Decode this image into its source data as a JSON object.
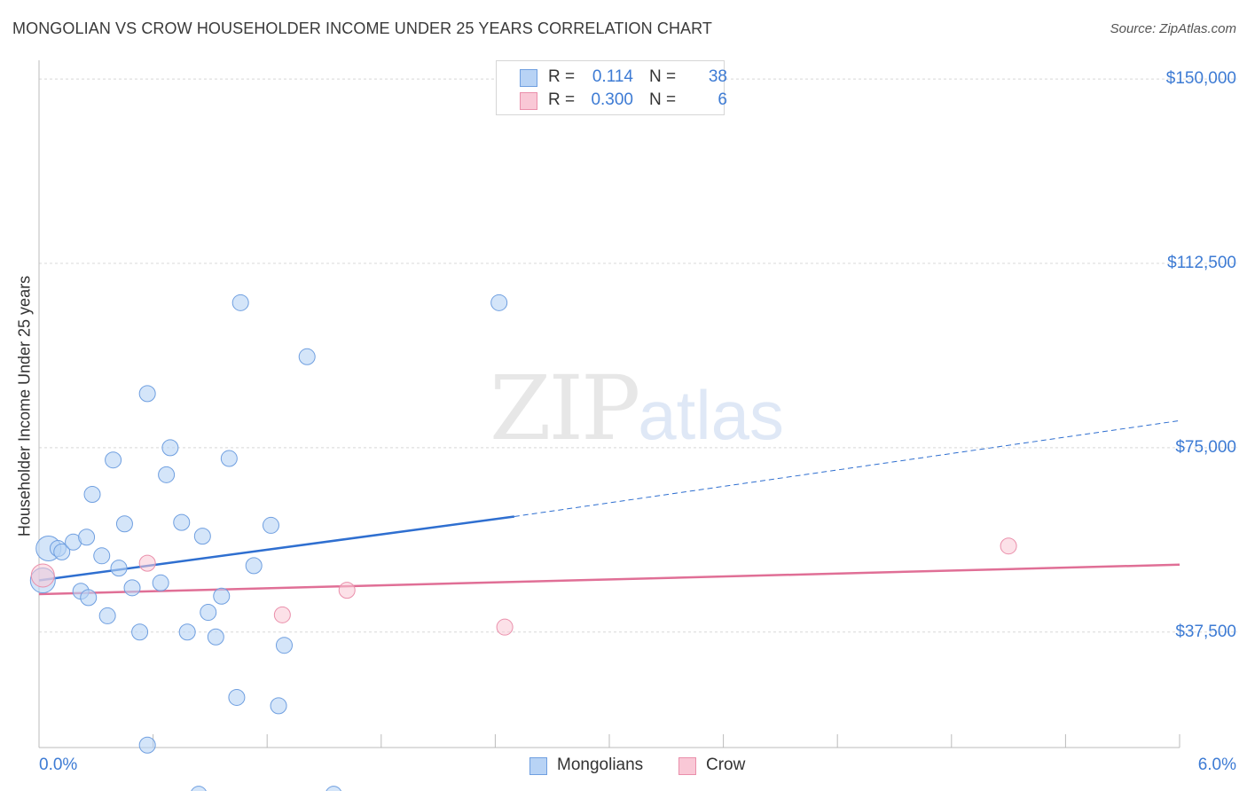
{
  "title": "MONGOLIAN VS CROW HOUSEHOLDER INCOME UNDER 25 YEARS CORRELATION CHART",
  "source_label": "Source:",
  "source_value": "ZipAtlas.com",
  "watermark": {
    "part1": "ZIP",
    "part2": "atlas"
  },
  "colors": {
    "mongolians_fill": "#b8d3f5",
    "mongolians_stroke": "#6f9fe0",
    "mongolians_line": "#2f6fd0",
    "crow_fill": "#f9c8d6",
    "crow_stroke": "#ea8fab",
    "crow_line": "#e06f96",
    "axis_text": "#3d7bd4",
    "grid": "#d8d8d8"
  },
  "legend": {
    "rows": [
      {
        "r_label": "R =",
        "r_value": "0.114",
        "n_label": "N =",
        "n_value": "38"
      },
      {
        "r_label": "R =",
        "r_value": "0.300",
        "n_label": "N =",
        "n_value": "6"
      }
    ],
    "series_names": [
      "Mongolians",
      "Crow"
    ]
  },
  "chart_data": {
    "type": "scatter",
    "title": "MONGOLIAN VS CROW HOUSEHOLDER INCOME UNDER 25 YEARS CORRELATION CHART",
    "xlabel": "",
    "ylabel": "Householder Income Under 25 years",
    "xlim": [
      0,
      6
    ],
    "ylim": [
      14000,
      152000
    ],
    "x_tick_labels": [
      "0.0%",
      "6.0%"
    ],
    "y_ticks": [
      37500,
      75000,
      112500,
      150000
    ],
    "y_tick_labels": [
      "$37,500",
      "$75,000",
      "$112,500",
      "$150,000"
    ],
    "grid": true,
    "legend_position": "top-center",
    "series": [
      {
        "name": "Mongolians",
        "points": [
          {
            "x": 0.02,
            "y": 48000,
            "big": true
          },
          {
            "x": 0.05,
            "y": 54500,
            "big": true
          },
          {
            "x": 0.1,
            "y": 54500
          },
          {
            "x": 0.12,
            "y": 53800
          },
          {
            "x": 0.18,
            "y": 55800
          },
          {
            "x": 0.25,
            "y": 56800
          },
          {
            "x": 0.22,
            "y": 45800
          },
          {
            "x": 0.26,
            "y": 44500
          },
          {
            "x": 0.28,
            "y": 65500
          },
          {
            "x": 0.33,
            "y": 53000
          },
          {
            "x": 0.36,
            "y": 40800
          },
          {
            "x": 0.39,
            "y": 72500
          },
          {
            "x": 0.42,
            "y": 50500
          },
          {
            "x": 0.45,
            "y": 59500
          },
          {
            "x": 0.49,
            "y": 46500
          },
          {
            "x": 0.53,
            "y": 37500
          },
          {
            "x": 0.57,
            "y": 14500
          },
          {
            "x": 0.57,
            "y": 86000
          },
          {
            "x": 0.64,
            "y": 47500
          },
          {
            "x": 0.67,
            "y": 69500
          },
          {
            "x": 0.69,
            "y": 75000
          },
          {
            "x": 0.75,
            "y": 59800
          },
          {
            "x": 0.78,
            "y": 37500
          },
          {
            "x": 0.84,
            "y": 4500
          },
          {
            "x": 0.86,
            "y": 57000
          },
          {
            "x": 0.89,
            "y": 41500
          },
          {
            "x": 0.93,
            "y": 36500
          },
          {
            "x": 0.96,
            "y": 44800
          },
          {
            "x": 1.0,
            "y": 72800
          },
          {
            "x": 1.04,
            "y": 24200
          },
          {
            "x": 1.06,
            "y": 104500
          },
          {
            "x": 1.13,
            "y": 51000
          },
          {
            "x": 1.22,
            "y": 59200
          },
          {
            "x": 1.26,
            "y": 22500
          },
          {
            "x": 1.29,
            "y": 34800
          },
          {
            "x": 1.41,
            "y": 93500
          },
          {
            "x": 1.55,
            "y": 4500
          },
          {
            "x": 2.42,
            "y": 104500
          }
        ],
        "trend": {
          "x": [
            0,
            2.5
          ],
          "y": [
            48000,
            61000
          ],
          "dashed_to": {
            "x": 6.0,
            "y": 80500
          }
        }
      },
      {
        "name": "Crow",
        "points": [
          {
            "x": 0.02,
            "y": 49000,
            "big": true
          },
          {
            "x": 0.57,
            "y": 51500
          },
          {
            "x": 1.28,
            "y": 41000
          },
          {
            "x": 1.62,
            "y": 46000
          },
          {
            "x": 2.45,
            "y": 38500
          },
          {
            "x": 5.1,
            "y": 55000
          }
        ],
        "trend": {
          "x": [
            0,
            6.0
          ],
          "y": [
            45200,
            51200
          ]
        }
      }
    ]
  }
}
